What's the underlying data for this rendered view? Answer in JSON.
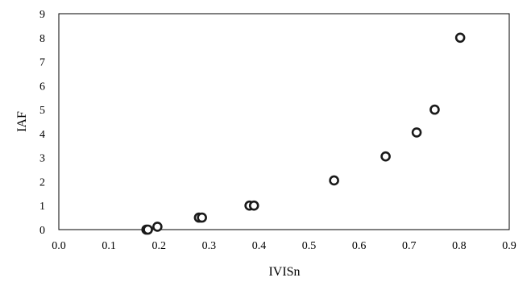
{
  "chart_data": {
    "type": "scatter",
    "title": "",
    "xlabel": "IVISn",
    "ylabel": "IAF",
    "xlim": [
      0.0,
      0.9
    ],
    "ylim": [
      0,
      9
    ],
    "x_ticks": [
      "0.0",
      "0.1",
      "0.2",
      "0.3",
      "0.4",
      "0.5",
      "0.6",
      "0.7",
      "0.8",
      "0.9"
    ],
    "y_ticks": [
      "0",
      "1",
      "2",
      "3",
      "4",
      "5",
      "6",
      "7",
      "8",
      "9"
    ],
    "grid": false,
    "legend": "none",
    "marker": "open-circle",
    "series": [
      {
        "points": [
          {
            "x": 0.175,
            "y": 0.0
          },
          {
            "x": 0.178,
            "y": 0.0
          },
          {
            "x": 0.197,
            "y": 0.12
          },
          {
            "x": 0.28,
            "y": 0.5
          },
          {
            "x": 0.286,
            "y": 0.5
          },
          {
            "x": 0.381,
            "y": 1.0
          },
          {
            "x": 0.39,
            "y": 1.0
          },
          {
            "x": 0.55,
            "y": 2.05
          },
          {
            "x": 0.653,
            "y": 3.05
          },
          {
            "x": 0.715,
            "y": 4.05
          },
          {
            "x": 0.751,
            "y": 5.0
          },
          {
            "x": 0.802,
            "y": 8.0
          }
        ]
      }
    ],
    "colors": {
      "axis": "#000000",
      "marker_stroke": "#1a1a1a",
      "marker_fill": "#ffffff"
    }
  }
}
